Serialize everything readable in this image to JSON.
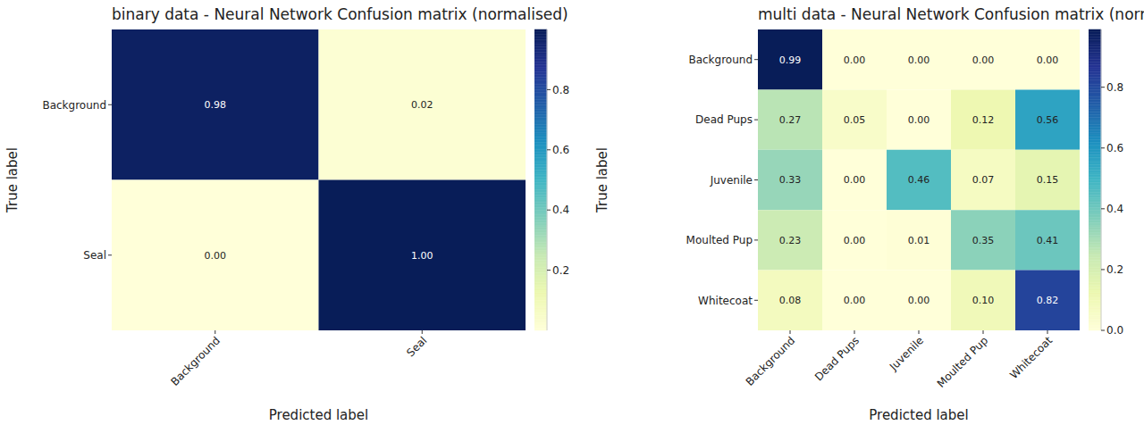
{
  "chart_data": [
    {
      "type": "heatmap",
      "title": "binary data - Neural Network Confusion matrix (normalised)",
      "x_label": "Predicted label",
      "y_label": "True label",
      "x_categories": [
        "Background",
        "Seal"
      ],
      "y_categories": [
        "Background",
        "Seal"
      ],
      "values": [
        [
          0.98,
          0.02
        ],
        [
          0,
          1
        ]
      ],
      "value_labels": [
        [
          "0.98",
          "0.02"
        ],
        [
          "0.00",
          "1.00"
        ]
      ],
      "data_labels": true,
      "colorbar": {
        "range": [
          0,
          1
        ],
        "ticks": [
          0.2,
          0.4,
          0.6,
          0.8
        ]
      }
    },
    {
      "type": "heatmap",
      "title": "multi data - Neural Network Confusion matrix (normalised)",
      "x_label": "Predicted label",
      "y_label": "True label",
      "x_categories": [
        "Background",
        "Dead Pups",
        "Juvenile",
        "Moulted Pup",
        "Whitecoat"
      ],
      "y_categories": [
        "Background",
        "Dead Pups",
        "Juvenile",
        "Moulted Pup",
        "Whitecoat"
      ],
      "values": [
        [
          0.99,
          0,
          0,
          0,
          0
        ],
        [
          0.27,
          0.05,
          0,
          0.12,
          0.56
        ],
        [
          0.33,
          0,
          0.46,
          0.07,
          0.15
        ],
        [
          0.23,
          0,
          0.01,
          0.35,
          0.41
        ],
        [
          0.08,
          0,
          0,
          0.1,
          0.82
        ]
      ],
      "value_labels": [
        [
          "0.99",
          "0.00",
          "0.00",
          "0.00",
          "0.00"
        ],
        [
          "0.27",
          "0.05",
          "0.00",
          "0.12",
          "0.56"
        ],
        [
          "0.33",
          "0.00",
          "0.46",
          "0.07",
          "0.15"
        ],
        [
          "0.23",
          "0.00",
          "0.01",
          "0.35",
          "0.41"
        ],
        [
          "0.08",
          "0.00",
          "0.00",
          "0.10",
          "0.82"
        ]
      ],
      "data_labels": true,
      "colorbar": {
        "range": [
          0,
          0.99
        ],
        "ticks": [
          {
            "value": 0,
            "label": "0.0"
          },
          0.2,
          0.4,
          0.6,
          0.8
        ]
      }
    }
  ]
}
